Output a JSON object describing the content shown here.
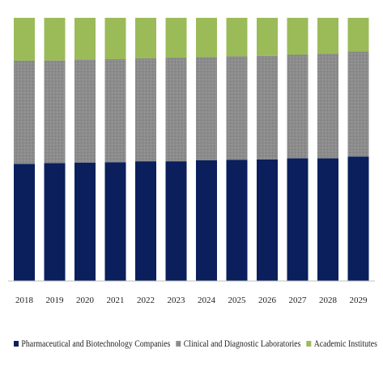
{
  "chart_data": {
    "type": "bar",
    "stacked": true,
    "normalized": true,
    "categories": [
      "2018",
      "2019",
      "2020",
      "2021",
      "2022",
      "2023",
      "2024",
      "2025",
      "2026",
      "2027",
      "2028",
      "2029"
    ],
    "series": [
      {
        "name": "Pharmaceutical and Biotechnology Companies",
        "color": "#0a1f5c",
        "values": [
          44.5,
          44.8,
          45.0,
          45.1,
          45.5,
          45.5,
          45.9,
          46.0,
          46.2,
          46.6,
          46.6,
          47.3
        ]
      },
      {
        "name": "Clinical and Diagnostic Laboratories",
        "color": "#8c8c8c",
        "values": [
          39.2,
          39.0,
          39.2,
          39.2,
          39.1,
          39.4,
          39.2,
          39.4,
          39.4,
          39.4,
          39.7,
          40.0
        ]
      },
      {
        "name": "Academic Institutes",
        "color": "#9bbb59",
        "values": [
          16.3,
          16.2,
          15.8,
          15.7,
          15.4,
          15.1,
          14.9,
          14.6,
          14.4,
          14.0,
          13.7,
          12.7
        ]
      }
    ],
    "ylim": [
      0,
      100
    ],
    "grid": false,
    "legend_position": "bottom"
  }
}
